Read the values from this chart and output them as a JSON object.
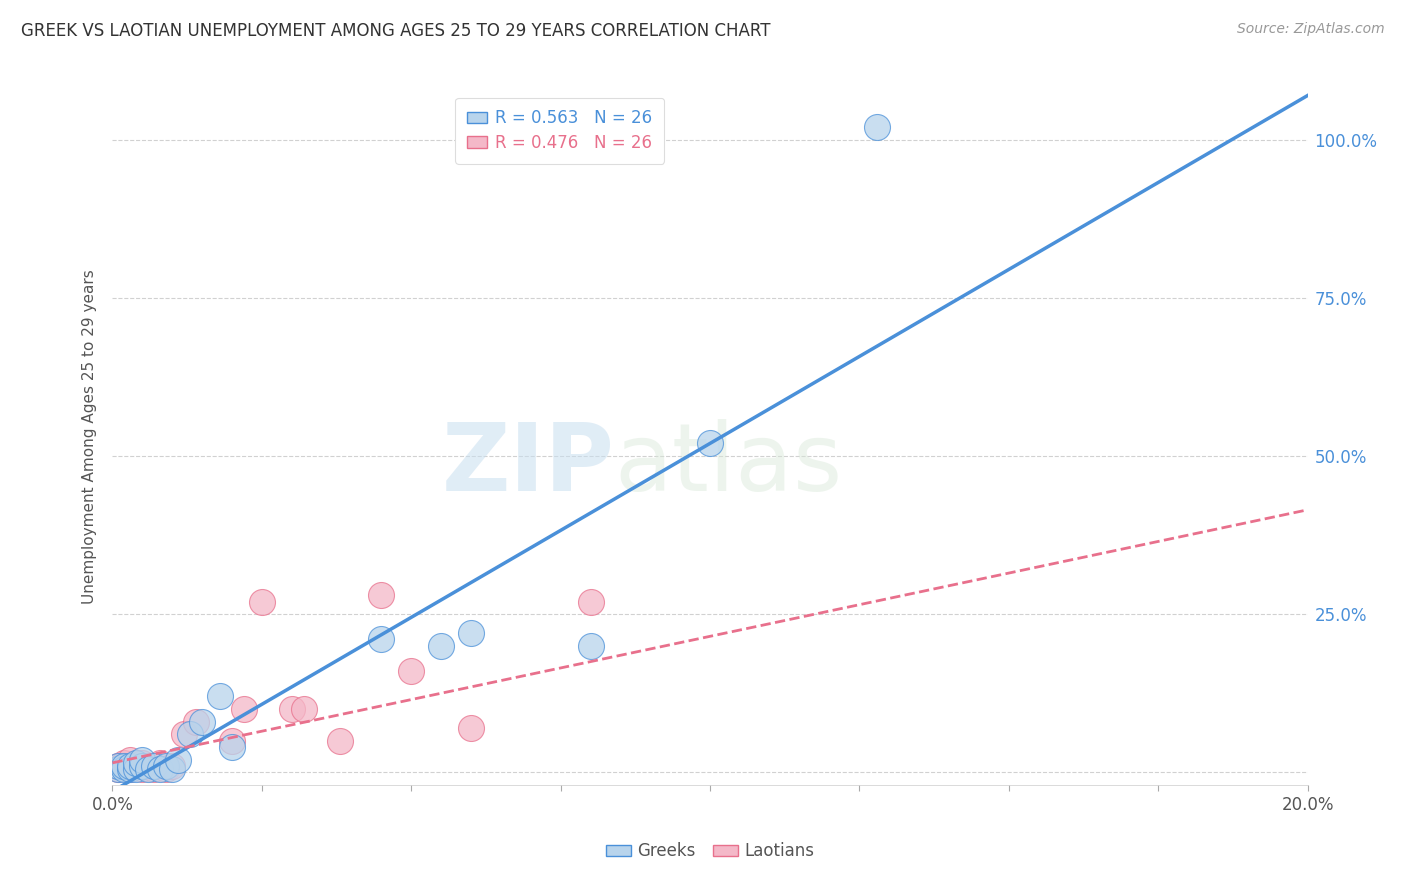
{
  "title": "GREEK VS LAOTIAN UNEMPLOYMENT AMONG AGES 25 TO 29 YEARS CORRELATION CHART",
  "source": "Source: ZipAtlas.com",
  "ylabel": "Unemployment Among Ages 25 to 29 years",
  "xlim": [
    0.0,
    0.2
  ],
  "ylim": [
    -0.02,
    1.08
  ],
  "xticks": [
    0.0,
    0.025,
    0.05,
    0.075,
    0.1,
    0.125,
    0.15,
    0.175,
    0.2
  ],
  "xtick_labels_show": [
    true,
    false,
    false,
    false,
    false,
    false,
    false,
    false,
    true
  ],
  "xtick_labels": [
    "0.0%",
    "",
    "",
    "",
    "",
    "",
    "",
    "",
    "20.0%"
  ],
  "yticks": [
    0.0,
    0.25,
    0.5,
    0.75,
    1.0
  ],
  "ytick_labels": [
    "",
    "25.0%",
    "50.0%",
    "75.0%",
    "100.0%"
  ],
  "greek_r": 0.563,
  "greek_n": 26,
  "laotian_r": 0.476,
  "laotian_n": 26,
  "greek_color": "#b8d4ec",
  "laotian_color": "#f4b8c8",
  "greek_line_color": "#4a90d9",
  "laotian_line_color": "#e8708c",
  "greek_edge_color": "#4a90d9",
  "laotian_edge_color": "#e8708c",
  "watermark_zip": "ZIP",
  "watermark_atlas": "atlas",
  "greek_points_x": [
    0.001,
    0.001,
    0.002,
    0.002,
    0.003,
    0.003,
    0.004,
    0.004,
    0.005,
    0.005,
    0.006,
    0.007,
    0.008,
    0.009,
    0.01,
    0.011,
    0.013,
    0.015,
    0.018,
    0.02,
    0.045,
    0.055,
    0.06,
    0.08,
    0.1,
    0.128
  ],
  "greek_points_y": [
    0.005,
    0.01,
    0.005,
    0.01,
    0.005,
    0.01,
    0.005,
    0.015,
    0.01,
    0.02,
    0.005,
    0.01,
    0.005,
    0.01,
    0.005,
    0.02,
    0.06,
    0.08,
    0.12,
    0.04,
    0.21,
    0.2,
    0.22,
    0.2,
    0.52,
    1.02
  ],
  "laotian_points_x": [
    0.001,
    0.001,
    0.002,
    0.002,
    0.003,
    0.003,
    0.004,
    0.005,
    0.005,
    0.006,
    0.007,
    0.008,
    0.009,
    0.01,
    0.012,
    0.014,
    0.02,
    0.022,
    0.025,
    0.03,
    0.032,
    0.038,
    0.045,
    0.05,
    0.06,
    0.08
  ],
  "laotian_points_y": [
    0.005,
    0.01,
    0.01,
    0.015,
    0.005,
    0.02,
    0.01,
    0.005,
    0.015,
    0.01,
    0.005,
    0.015,
    0.005,
    0.01,
    0.06,
    0.08,
    0.05,
    0.1,
    0.27,
    0.1,
    0.1,
    0.05,
    0.28,
    0.16,
    0.07,
    0.27
  ],
  "greek_slope": 5.5,
  "greek_intercept": -0.03,
  "laotian_slope": 2.0,
  "laotian_intercept": 0.015,
  "background_color": "#ffffff",
  "grid_color": "#cccccc",
  "axis_label_color": "#4a90d9",
  "text_color": "#555555"
}
